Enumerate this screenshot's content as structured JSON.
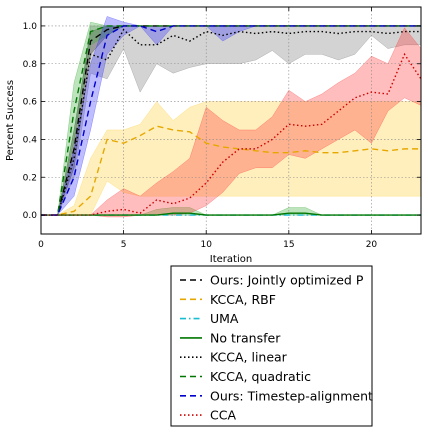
{
  "chart_data": {
    "type": "line",
    "xlabel": "Iteration",
    "ylabel": "Percent Success",
    "xlim": [
      0,
      23
    ],
    "ylim": [
      -0.1,
      1.1
    ],
    "xticks": [
      0,
      5,
      10,
      15,
      20
    ],
    "yticks": [
      0.0,
      0.2,
      0.4,
      0.6,
      0.8,
      1.0
    ],
    "grid": true,
    "legend_position": "below-plot",
    "series": [
      {
        "name": "Ours: Jointly optimized P",
        "color": "#000000",
        "dash": "dashed",
        "band_color": "#000000",
        "x": [
          0,
          1,
          2,
          3,
          4,
          5,
          6,
          7,
          8,
          9,
          10,
          11,
          12,
          13,
          14,
          15,
          16,
          17,
          18,
          19,
          20,
          21,
          22,
          23
        ],
        "y": [
          0,
          0,
          0.35,
          0.92,
          0.98,
          1,
          1,
          1,
          1,
          1,
          1,
          1,
          1,
          1,
          1,
          1,
          1,
          1,
          1,
          1,
          1,
          1,
          1,
          1
        ],
        "lower": [
          0,
          0,
          0.25,
          0.85,
          0.95,
          1,
          1,
          1,
          1,
          1,
          1,
          1,
          1,
          1,
          1,
          1,
          1,
          1,
          1,
          1,
          1,
          1,
          1,
          1
        ],
        "upper": [
          0,
          0,
          0.45,
          0.97,
          1,
          1,
          1,
          1,
          1,
          1,
          1,
          1,
          1,
          1,
          1,
          1,
          1,
          1,
          1,
          1,
          1,
          1,
          1,
          1
        ]
      },
      {
        "name": "KCCA, RBF",
        "color": "#e6a800",
        "dash": "dashed",
        "band_color": "#ffcc33",
        "x": [
          0,
          1,
          2,
          3,
          4,
          5,
          6,
          7,
          8,
          9,
          10,
          11,
          12,
          13,
          14,
          15,
          16,
          17,
          18,
          19,
          20,
          21,
          22,
          23
        ],
        "y": [
          0,
          0,
          0.02,
          0.1,
          0.4,
          0.38,
          0.42,
          0.47,
          0.45,
          0.44,
          0.38,
          0.36,
          0.35,
          0.34,
          0.33,
          0.33,
          0.34,
          0.33,
          0.33,
          0.34,
          0.35,
          0.34,
          0.35,
          0.35
        ],
        "lower": [
          0,
          0,
          0,
          0,
          0.18,
          0.12,
          0.1,
          0.1,
          0.1,
          0.1,
          0.1,
          0.1,
          0.1,
          0.1,
          0.1,
          0.1,
          0.1,
          0.1,
          0.1,
          0.1,
          0.1,
          0.1,
          0.1,
          0.1
        ],
        "upper": [
          0,
          0,
          0.05,
          0.3,
          0.45,
          0.45,
          0.48,
          0.6,
          0.5,
          0.57,
          0.6,
          0.6,
          0.6,
          0.6,
          0.6,
          0.6,
          0.6,
          0.6,
          0.6,
          0.6,
          0.6,
          0.6,
          0.6,
          0.6
        ]
      },
      {
        "name": "UMA",
        "color": "#17becf",
        "dash": "dashdot",
        "band_color": null,
        "x": [
          0,
          23
        ],
        "y": [
          0,
          0
        ],
        "lower": null,
        "upper": null
      },
      {
        "name": "No transfer",
        "color": "#007700",
        "dash": "solid",
        "band_color": "#33aa33",
        "x": [
          0,
          1,
          2,
          3,
          4,
          5,
          6,
          7,
          8,
          9,
          10,
          11,
          12,
          13,
          14,
          15,
          16,
          17,
          18,
          19,
          20,
          21,
          22,
          23
        ],
        "y": [
          0,
          0,
          0,
          0,
          0,
          0,
          0,
          0,
          0.01,
          0.01,
          0,
          0,
          0,
          0,
          0,
          0.01,
          0.01,
          0,
          0,
          0,
          0,
          0,
          0,
          0
        ],
        "lower": [
          0,
          0,
          0,
          0,
          0,
          0,
          0,
          0,
          0,
          0,
          0,
          0,
          0,
          0,
          0,
          0,
          0,
          0,
          0,
          0,
          0,
          0,
          0,
          0
        ],
        "upper": [
          0,
          0,
          0,
          0,
          0,
          0,
          0,
          0.03,
          0.04,
          0.04,
          0,
          0,
          0,
          0,
          0,
          0.04,
          0.04,
          0,
          0,
          0,
          0,
          0,
          0,
          0
        ]
      },
      {
        "name": "KCCA, linear",
        "color": "#000000",
        "dash": "dotted",
        "band_color": "#777777",
        "x": [
          0,
          1,
          2,
          3,
          4,
          5,
          6,
          7,
          8,
          9,
          10,
          11,
          12,
          13,
          14,
          15,
          16,
          17,
          18,
          19,
          20,
          21,
          22,
          23
        ],
        "y": [
          0,
          0,
          0.3,
          0.85,
          0.82,
          0.98,
          0.9,
          0.9,
          0.95,
          0.92,
          0.97,
          0.95,
          0.97,
          0.96,
          0.97,
          0.96,
          0.97,
          0.97,
          0.96,
          0.97,
          0.97,
          0.96,
          0.97,
          0.97
        ],
        "lower": [
          0,
          0,
          0.2,
          0.75,
          0.72,
          0.88,
          0.65,
          0.8,
          0.75,
          0.78,
          0.8,
          0.8,
          0.8,
          0.82,
          0.87,
          0.8,
          0.85,
          0.85,
          0.82,
          0.85,
          0.95,
          0.88,
          0.9,
          0.9
        ],
        "upper": [
          0,
          0,
          0.4,
          1,
          1,
          1,
          1,
          1,
          1,
          1,
          1,
          1,
          1,
          1,
          1,
          1,
          1,
          1,
          1,
          1,
          1,
          1,
          1,
          1
        ]
      },
      {
        "name": "KCCA, quadratic",
        "color": "#007700",
        "dash": "dashed",
        "band_color": "#33aa33",
        "x": [
          0,
          1,
          2,
          3,
          4,
          5,
          6,
          7,
          8,
          9,
          10,
          11,
          12,
          13,
          14,
          15,
          16,
          17,
          18,
          19,
          20,
          21,
          22,
          23
        ],
        "y": [
          0,
          0,
          0.55,
          0.97,
          1,
          1,
          1,
          1,
          1,
          1,
          1,
          1,
          1,
          1,
          1,
          1,
          1,
          1,
          1,
          1,
          1,
          1,
          1,
          1
        ],
        "lower": [
          0,
          0,
          0.4,
          0.9,
          0.95,
          1,
          1,
          1,
          1,
          1,
          1,
          1,
          1,
          1,
          1,
          1,
          1,
          1,
          1,
          1,
          1,
          1,
          1,
          1
        ],
        "upper": [
          0,
          0,
          0.7,
          1.02,
          1,
          1,
          1,
          1,
          1,
          1,
          1,
          1,
          1,
          1,
          1,
          1,
          1,
          1,
          1,
          1,
          1,
          1,
          1,
          1
        ]
      },
      {
        "name": "Ours: Timestep-alignment",
        "color": "#0000cc",
        "dash": "dashed",
        "band_color": "#3333ff",
        "x": [
          0,
          1,
          2,
          3,
          4,
          5,
          6,
          7,
          8,
          9,
          10,
          11,
          12,
          13,
          14,
          15,
          16,
          17,
          18,
          19,
          20,
          21,
          22,
          23
        ],
        "y": [
          0,
          0,
          0.2,
          0.6,
          0.95,
          1,
          1,
          0.97,
          1,
          1,
          1,
          1,
          1,
          1,
          1,
          1,
          1,
          1,
          1,
          1,
          1,
          1,
          1,
          1
        ],
        "lower": [
          0,
          0,
          0.1,
          0.45,
          0.85,
          0.95,
          1,
          0.9,
          1,
          1,
          1,
          0.92,
          0.97,
          1,
          1,
          1,
          1,
          1,
          1,
          1,
          1,
          1,
          1,
          1
        ],
        "upper": [
          0,
          0,
          0.35,
          0.8,
          1.05,
          1.02,
          1,
          1,
          1,
          1,
          1,
          1,
          1,
          1,
          1,
          1,
          1,
          1,
          1,
          1,
          1,
          1,
          1,
          1
        ]
      },
      {
        "name": "CCA",
        "color": "#cc0000",
        "dash": "dotted",
        "band_color": "#ff3333",
        "x": [
          0,
          1,
          2,
          3,
          4,
          5,
          6,
          7,
          8,
          9,
          10,
          11,
          12,
          13,
          14,
          15,
          16,
          17,
          18,
          19,
          20,
          21,
          22,
          23
        ],
        "y": [
          0,
          0,
          0,
          0,
          0.02,
          0.03,
          0.01,
          0.08,
          0.06,
          0.09,
          0.17,
          0.28,
          0.35,
          0.35,
          0.4,
          0.48,
          0.47,
          0.48,
          0.55,
          0.62,
          0.65,
          0.64,
          0.85,
          0.72
        ],
        "lower": [
          0,
          0,
          0,
          0,
          -0.01,
          -0.01,
          0,
          0,
          0,
          0.01,
          0.05,
          0.12,
          0.22,
          0.25,
          0.25,
          0.32,
          0.3,
          0.35,
          0.4,
          0.45,
          0.38,
          0.55,
          0.62,
          0.58
        ],
        "upper": [
          0,
          0,
          0,
          0,
          0.08,
          0.14,
          0.1,
          0.17,
          0.23,
          0.3,
          0.57,
          0.5,
          0.45,
          0.45,
          0.52,
          0.66,
          0.6,
          0.64,
          0.7,
          0.75,
          0.84,
          0.8,
          0.99,
          0.88
        ]
      }
    ]
  }
}
